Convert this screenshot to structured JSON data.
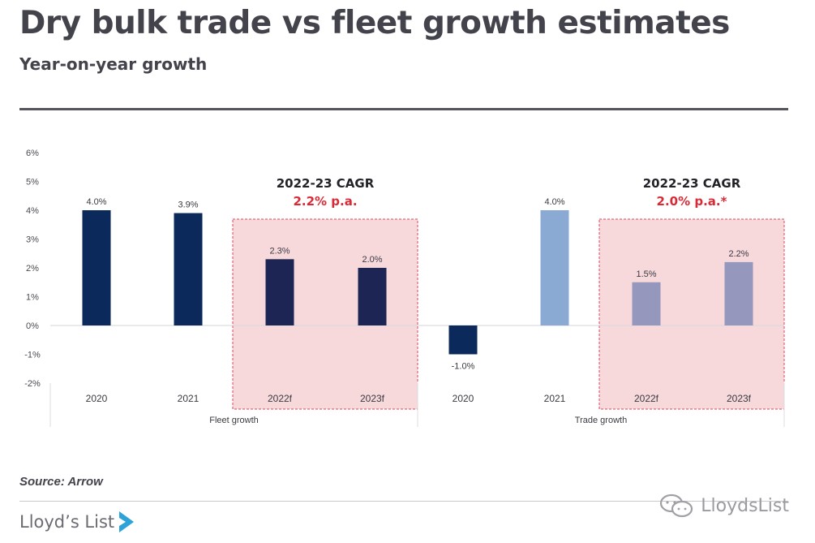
{
  "header": {
    "title": "Dry bulk trade vs fleet growth estimates",
    "subtitle": "Year-on-year growth"
  },
  "footer": {
    "source": "Source: Arrow",
    "brand": "Lloyd’s List",
    "watermark": "LloydsList"
  },
  "colors": {
    "fleet_actual": "#0b2a5b",
    "fleet_forecast": "#1c2553",
    "trade_actual": "#8aaad4",
    "trade_forecast": "#9697bc",
    "highlight_fill": "#f7d9dc",
    "highlight_border": "#d9475a",
    "cagr_value": "#d92b37"
  },
  "chart_data": {
    "type": "bar",
    "ylim": [
      -2,
      6
    ],
    "y_ticks": [
      "6%",
      "5%",
      "4%",
      "3%",
      "2%",
      "1%",
      "0%",
      "-1%",
      "-2%"
    ],
    "y_tick_values": [
      6,
      5,
      4,
      3,
      2,
      1,
      0,
      -1,
      -2
    ],
    "grid": false,
    "groups": [
      {
        "name": "Fleet growth",
        "categories": [
          "2020",
          "2021",
          "2022f",
          "2023f"
        ],
        "values": [
          4.0,
          3.9,
          2.3,
          2.0
        ],
        "labels": [
          "4.0%",
          "3.9%",
          "2.3%",
          "2.0%"
        ],
        "forecast": [
          false,
          false,
          true,
          true
        ],
        "cagr_title": "2022-23 CAGR",
        "cagr_value": "2.2% p.a."
      },
      {
        "name": "Trade growth",
        "categories": [
          "2020",
          "2021",
          "2022f",
          "2023f"
        ],
        "values": [
          -1.0,
          4.0,
          1.5,
          2.2
        ],
        "labels": [
          "-1.0%",
          "4.0%",
          "1.5%",
          "2.2%"
        ],
        "forecast": [
          false,
          false,
          true,
          true
        ],
        "cagr_title": "2022-23 CAGR",
        "cagr_value": "2.0% p.a.*"
      }
    ]
  }
}
